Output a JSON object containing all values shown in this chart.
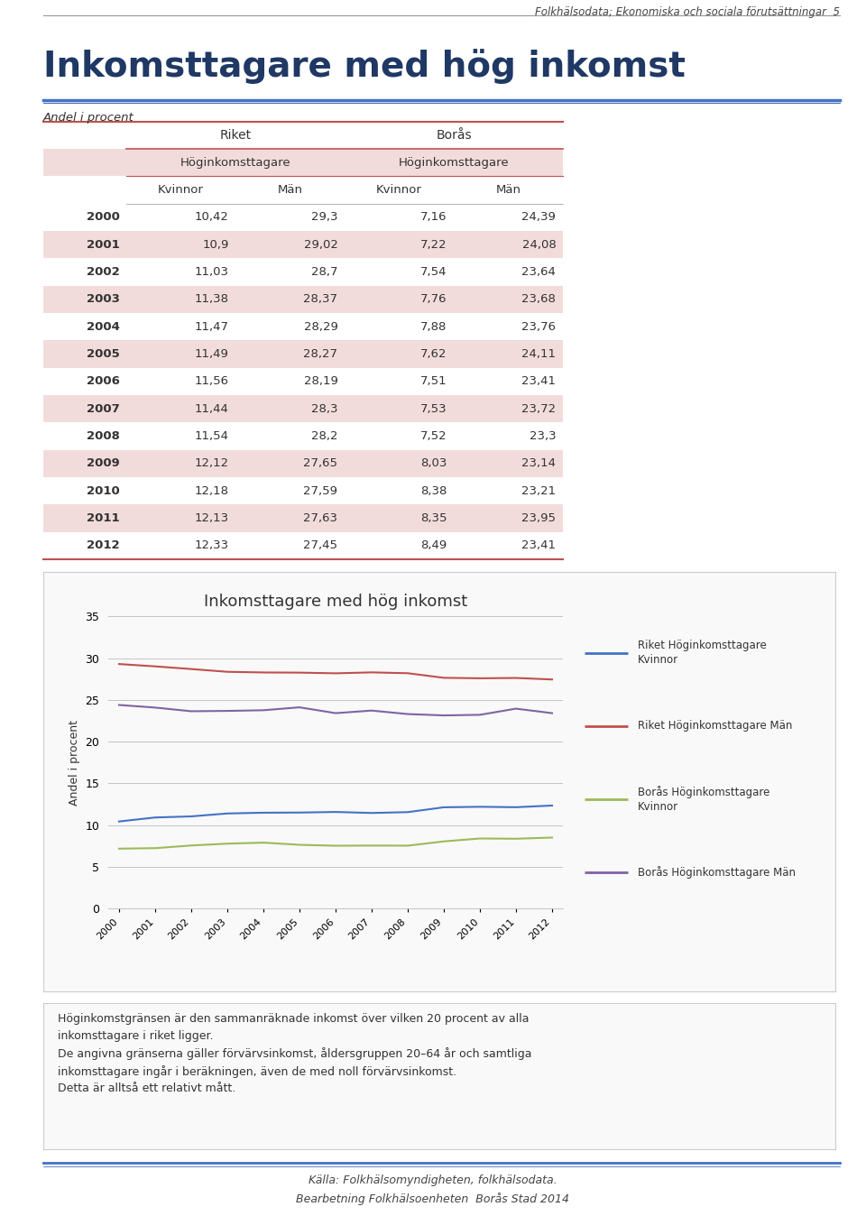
{
  "header_text": "Folkhälsodata; Ekonomiska och sociala förutsättningar  5",
  "main_title": "Inkomsttagare med hög inkomst",
  "subtitle": "Andel i procent",
  "years": [
    2000,
    2001,
    2002,
    2003,
    2004,
    2005,
    2006,
    2007,
    2008,
    2009,
    2010,
    2011,
    2012
  ],
  "riket_kvinnor": [
    10.42,
    10.9,
    11.03,
    11.38,
    11.47,
    11.49,
    11.56,
    11.44,
    11.54,
    12.12,
    12.18,
    12.13,
    12.33
  ],
  "riket_man": [
    29.3,
    29.02,
    28.7,
    28.37,
    28.29,
    28.27,
    28.19,
    28.3,
    28.2,
    27.65,
    27.59,
    27.63,
    27.45
  ],
  "boras_kvinnor": [
    7.16,
    7.22,
    7.54,
    7.76,
    7.88,
    7.62,
    7.51,
    7.53,
    7.52,
    8.03,
    8.38,
    8.35,
    8.49
  ],
  "boras_man": [
    24.39,
    24.08,
    23.64,
    23.68,
    23.76,
    24.11,
    23.41,
    23.72,
    23.3,
    23.14,
    23.21,
    23.95,
    23.41
  ],
  "riket_man_str": [
    "29,3",
    "29,02",
    "28,7",
    "28,37",
    "28,29",
    "28,27",
    "28,19",
    "28,3",
    "28,2",
    "27,65",
    "27,59",
    "27,63",
    "27,45"
  ],
  "riket_k_str": [
    "10,42",
    "10,9",
    "11,03",
    "11,38",
    "11,47",
    "11,49",
    "11,56",
    "11,44",
    "11,54",
    "12,12",
    "12,18",
    "12,13",
    "12,33"
  ],
  "boras_k_str": [
    "7,16",
    "7,22",
    "7,54",
    "7,76",
    "7,88",
    "7,62",
    "7,51",
    "7,53",
    "7,52",
    "8,03",
    "8,38",
    "8,35",
    "8,49"
  ],
  "boras_man_str": [
    "24,39",
    "24,08",
    "23,64",
    "23,68",
    "23,76",
    "24,11",
    "23,41",
    "23,72",
    "23,3",
    "23,14",
    "23,21",
    "23,95",
    "23,41"
  ],
  "chart_title": "Inkomsttagare med hög inkomst",
  "ylabel": "Andel i procent",
  "ylim": [
    0,
    35
  ],
  "yticks": [
    0,
    5,
    10,
    15,
    20,
    25,
    30,
    35
  ],
  "line_colors": {
    "riket_kvinnor": "#4472C4",
    "riket_man": "#C0504D",
    "boras_kvinnor": "#9BBB59",
    "boras_man": "#8064A2"
  },
  "legend_labels": [
    "Riket Höginkomsttagare\nKvinnor",
    "Riket Höginkomsttagare Män",
    "Borås Höginkomsttagare\nKvinnor",
    "Borås Höginkomsttagare Män"
  ],
  "footnote_text": "Höginkomstgränsen är den sammanräknade inkomst över vilken 20 procent av alla\ninkomsttagare i riket ligger.\nDe angivna gränserna gäller förvärvsinkomst, åldersgruppen 20–64 år och samtliga\ninkomsttagare ingår i beräkningen, även de med noll förvärvsinkomst.\nDetta är alltså ett relativt mått.",
  "source_text": "Källa: Folkhälsomyndigheten, folkhälsodata.\nBearbetning Folkhälsoenheten  Borås Stad 2014",
  "bg_color": "#FFFFFF",
  "table_bg_light": "#FFFFFF",
  "table_bg_alt": "#F2DCDB",
  "table_header_bg": "#F2DCDB",
  "title_color": "#1F3864",
  "header_line_color": "#4472C4",
  "table_border_color": "#C0504D",
  "chart_bg": "#F9F9F9",
  "chart_border": "#CCCCCC"
}
